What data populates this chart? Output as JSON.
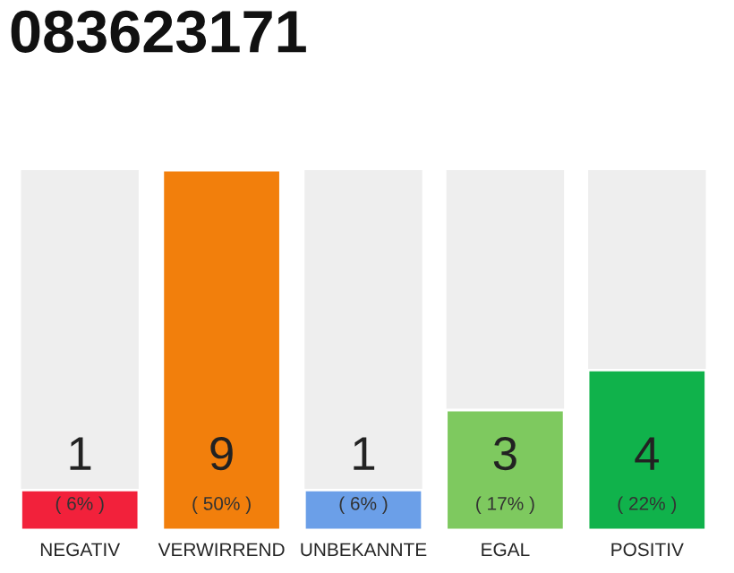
{
  "chart_data": {
    "type": "bar",
    "title": "083623171",
    "categories": [
      "NEGATIV",
      "VERWIRREND",
      "UNBEKANNTE",
      "EGAL",
      "POSITIV"
    ],
    "values": [
      1,
      9,
      1,
      3,
      4
    ],
    "colors": [
      "#f2213b",
      "#f27f0c",
      "#6b9fe8",
      "#7ec95f",
      "#10b24b"
    ],
    "value_labels": [
      "1\n( 6% )",
      "9\n( 50% )",
      "1\n( 6% )",
      "3\n( 17% )",
      "4\n( 22% )"
    ],
    "ylim": [
      0,
      9
    ],
    "grid": false,
    "legend": false
  }
}
